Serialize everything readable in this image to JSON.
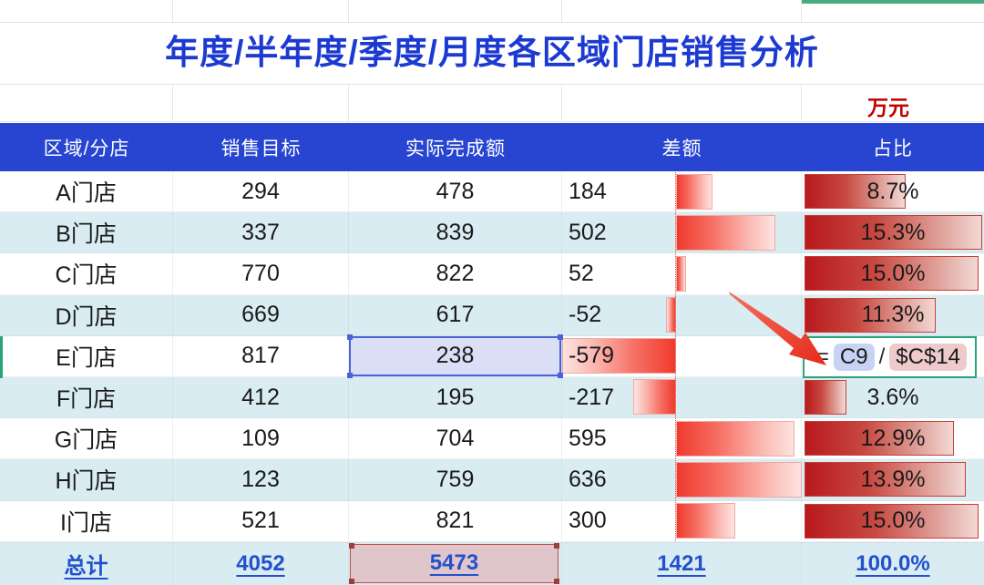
{
  "title": "年度/半年度/季度/月度各区域门店销售分析",
  "unit_label": "万元",
  "table": {
    "headers": [
      "区域/分店",
      "销售目标",
      "实际完成额",
      "差额",
      "占比"
    ],
    "rows": [
      {
        "region": "A门店",
        "target": 294,
        "actual": 478,
        "diff": 184,
        "pct": 8.7,
        "pct_label": "8.7%"
      },
      {
        "region": "B门店",
        "target": 337,
        "actual": 839,
        "diff": 502,
        "pct": 15.3,
        "pct_label": "15.3%"
      },
      {
        "region": "C门店",
        "target": 770,
        "actual": 822,
        "diff": 52,
        "pct": 15.0,
        "pct_label": "15.0%"
      },
      {
        "region": "D门店",
        "target": 669,
        "actual": 617,
        "diff": -52,
        "pct": 11.3,
        "pct_label": "11.3%"
      },
      {
        "region": "E门店",
        "target": 817,
        "actual": 238,
        "diff": -579,
        "pct": null,
        "pct_label": "",
        "selected_actual": true,
        "formula_cell": true
      },
      {
        "region": "F门店",
        "target": 412,
        "actual": 195,
        "diff": -217,
        "pct": 3.6,
        "pct_label": "3.6%"
      },
      {
        "region": "G门店",
        "target": 109,
        "actual": 704,
        "diff": 595,
        "pct": 12.9,
        "pct_label": "12.9%"
      },
      {
        "region": "H门店",
        "target": 123,
        "actual": 759,
        "diff": 636,
        "pct": 13.9,
        "pct_label": "13.9%"
      },
      {
        "region": "I门店",
        "target": 521,
        "actual": 821,
        "diff": 300,
        "pct": 15.0,
        "pct_label": "15.0%"
      }
    ],
    "total": {
      "label": "总计",
      "target": "4052",
      "actual": "5473",
      "diff": "1421",
      "pct": "100.0%"
    }
  },
  "formula": {
    "equals": "=",
    "ref1": "C9",
    "operator": "/",
    "ref2": "$C$14"
  },
  "colors": {
    "header_blue": "#2745d0",
    "title_blue": "#1c3ad1",
    "unit_red": "#c00000",
    "stripe_cyan": "#d9ecf2",
    "pct_bar_dark": "#b8191d",
    "pct_bar_light": "#f2d9d5",
    "bar_border": "#c2413a",
    "diff_bar_red": "#f03a2e",
    "diff_bar_pale": "#fde3e0",
    "diff_bar_border": "#f2aaa3",
    "total_blue": "#2251cc",
    "formula_green": "#2aa377",
    "ref1_fill": "#c8d3f3",
    "ref2_fill": "#eecacb",
    "selection_blue": "#4a63d8",
    "selection_fill": "#dbdff5",
    "pink_fill": "#e0c5ca",
    "pink_border": "#b9524e",
    "pink_handle": "#9c3f3b",
    "axis_red": "#e14b3f",
    "arrow_red": "#e93c2b",
    "accent_teal": "#49a97f"
  }
}
